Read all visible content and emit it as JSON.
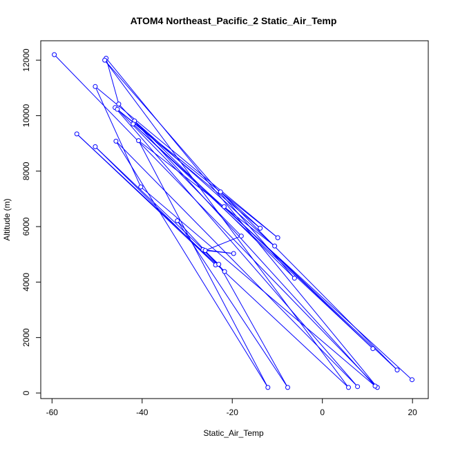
{
  "chart_data": {
    "type": "line",
    "title": "ATOM4 Northeast_Pacific_2 Static_Air_Temp",
    "xlabel": "Static_Air_Temp",
    "ylabel": "Altitude (m)",
    "xlim": [
      -62.5,
      23.5
    ],
    "ylim": [
      -200,
      12700
    ],
    "xticks": [
      -60,
      -40,
      -20,
      0,
      20
    ],
    "yticks": [
      0,
      2000,
      4000,
      6000,
      8000,
      10000,
      12000
    ],
    "grid": false,
    "color": "#0000ff",
    "series": [
      {
        "points": [
          [
            -59.5,
            12200
          ],
          [
            12.2,
            200
          ],
          [
            -48.0,
            12070
          ],
          [
            -45.2,
            10420
          ],
          [
            11.7,
            250
          ],
          [
            -40.3,
            7430
          ],
          [
            -50.4,
            11050
          ],
          [
            -9.9,
            5600
          ],
          [
            -46.0,
            10290
          ],
          [
            7.8,
            230
          ],
          [
            -45.8,
            9080
          ],
          [
            -12.1,
            200
          ],
          [
            -40.8,
            9100
          ],
          [
            -10.6,
            5300
          ],
          [
            -41.7,
            9810
          ],
          [
            -6.2,
            4140
          ],
          [
            -48.3,
            12000
          ],
          [
            5.8,
            200
          ],
          [
            -54.5,
            9340
          ],
          [
            -23.7,
            4620
          ],
          [
            -50.4,
            8880
          ],
          [
            -23.0,
            4640
          ],
          [
            -7.7,
            200
          ],
          [
            -32.2,
            6210
          ],
          [
            -21.7,
            4380
          ],
          [
            -26.5,
            5170
          ],
          [
            -19.7,
            5030
          ],
          [
            -26.0,
            5140
          ],
          [
            -18.0,
            5660
          ],
          [
            -45.5,
            10230
          ],
          [
            -13.8,
            5940
          ],
          [
            -22.6,
            7250
          ],
          [
            16.6,
            830
          ],
          [
            -21.8,
            6720
          ],
          [
            11.2,
            1600
          ],
          [
            -42.0,
            9700
          ],
          [
            19.9,
            480
          ]
        ]
      }
    ]
  }
}
